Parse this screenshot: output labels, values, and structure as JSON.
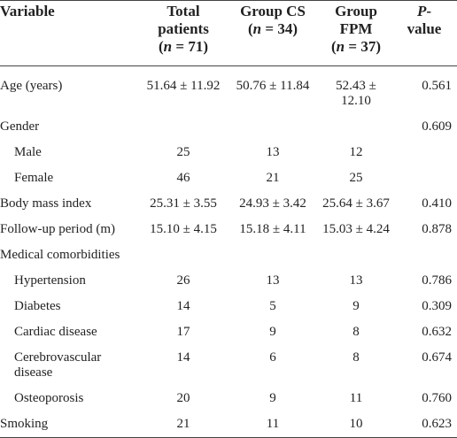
{
  "table": {
    "columns": [
      {
        "lines": [
          [
            {
              "text": "Variable"
            }
          ]
        ]
      },
      {
        "lines": [
          [
            {
              "text": "Total"
            }
          ],
          [
            {
              "text": "patients"
            }
          ],
          [
            {
              "text": "("
            },
            {
              "text": "n",
              "italic": true
            },
            {
              "text": " = 71)"
            }
          ]
        ]
      },
      {
        "lines": [
          [
            {
              "text": "Group CS"
            }
          ],
          [
            {
              "text": "("
            },
            {
              "text": "n",
              "italic": true
            },
            {
              "text": " = 34)"
            }
          ]
        ]
      },
      {
        "lines": [
          [
            {
              "text": "Group"
            }
          ],
          [
            {
              "text": "FPM"
            }
          ],
          [
            {
              "text": "("
            },
            {
              "text": "n",
              "italic": true
            },
            {
              "text": " = 37)"
            }
          ]
        ]
      },
      {
        "lines": [
          [
            {
              "text": "P",
              "italic": true
            },
            {
              "text": "-"
            }
          ],
          [
            {
              "text": "value"
            }
          ]
        ]
      }
    ],
    "rows": [
      {
        "label": "Age (years)",
        "indent": false,
        "cells": [
          "51.64 ± 11.92",
          "50.76 ± 11.84",
          "52.43 ± 12.10",
          "0.561"
        ]
      },
      {
        "label": "Gender",
        "indent": false,
        "cells": [
          null,
          null,
          null,
          "0.609"
        ]
      },
      {
        "label": "Male",
        "indent": true,
        "cells": [
          "25",
          "13",
          "12",
          null
        ]
      },
      {
        "label": "Female",
        "indent": true,
        "cells": [
          "46",
          "21",
          "25",
          null
        ]
      },
      {
        "label": "Body mass index",
        "indent": false,
        "cells": [
          "25.31 ± 3.55",
          "24.93 ± 3.42",
          "25.64 ± 3.67",
          "0.410"
        ]
      },
      {
        "label": "Follow-up period (m)",
        "indent": false,
        "cells": [
          "15.10 ± 4.15",
          "15.18 ± 4.11",
          "15.03 ± 4.24",
          "0.878"
        ]
      },
      {
        "label": "Medical comorbidities",
        "indent": false,
        "cells": [
          null,
          null,
          null,
          null
        ]
      },
      {
        "label": "Hypertension",
        "indent": true,
        "cells": [
          "26",
          "13",
          "13",
          "0.786"
        ]
      },
      {
        "label": "Diabetes",
        "indent": true,
        "cells": [
          "14",
          "5",
          "9",
          "0.309"
        ]
      },
      {
        "label": "Cardiac disease",
        "indent": true,
        "cells": [
          "17",
          "9",
          "8",
          "0.632"
        ]
      },
      {
        "label": "Cerebrovascular disease",
        "indent": true,
        "cells": [
          "14",
          "6",
          "8",
          "0.674"
        ]
      },
      {
        "label": "Osteoporosis",
        "indent": true,
        "cells": [
          "20",
          "9",
          "11",
          "0.760"
        ]
      },
      {
        "label": "Smoking",
        "indent": false,
        "cells": [
          "21",
          "11",
          "10",
          "0.623"
        ]
      }
    ]
  }
}
